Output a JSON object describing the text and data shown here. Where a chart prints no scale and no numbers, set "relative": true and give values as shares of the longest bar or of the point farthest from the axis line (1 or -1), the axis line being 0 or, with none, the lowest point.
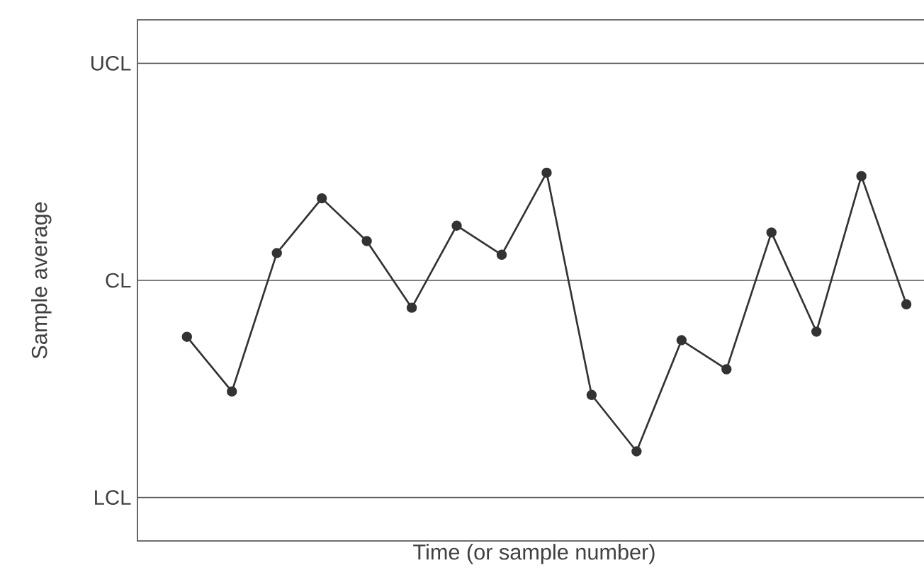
{
  "chart_data": {
    "type": "line",
    "xlabel": "Time (or sample number)",
    "ylabel": "Sample average",
    "relative": true,
    "categories": [
      null,
      null,
      null,
      null,
      null,
      null,
      null,
      null,
      null,
      null,
      null,
      null,
      null,
      null,
      null,
      null,
      null
    ],
    "values": [
      -0.33,
      -0.65,
      0.16,
      0.48,
      0.23,
      -0.16,
      0.32,
      0.15,
      0.63,
      -0.67,
      -1,
      -0.35,
      -0.52,
      0.28,
      -0.3,
      0.61,
      -0.14
    ],
    "color": "#333333",
    "marker": "circle",
    "line_style": "solid",
    "ref_lines": [
      {
        "axis": "y",
        "value": 1.27,
        "label": "UCL",
        "color": "#555555"
      },
      {
        "axis": "y",
        "value": 0,
        "label": "CL",
        "color": "#555555"
      },
      {
        "axis": "y",
        "value": -1.27,
        "label": "LCL",
        "color": "#555555"
      }
    ]
  }
}
